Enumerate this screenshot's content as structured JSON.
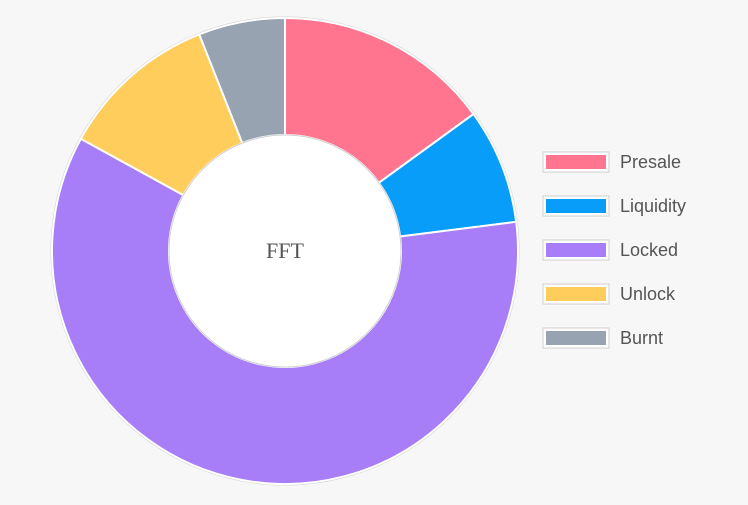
{
  "chart_data": {
    "type": "pie",
    "variant": "doughnut",
    "center_label": "FFT",
    "legend_position": "right",
    "categories": [
      "Presale",
      "Liquidity",
      "Locked",
      "Unlock",
      "Burnt"
    ],
    "values": [
      15,
      8,
      60,
      11,
      6
    ],
    "colors": [
      "#ff7590",
      "#079df8",
      "#a77df8",
      "#ffcd5c",
      "#97a3b1"
    ]
  }
}
